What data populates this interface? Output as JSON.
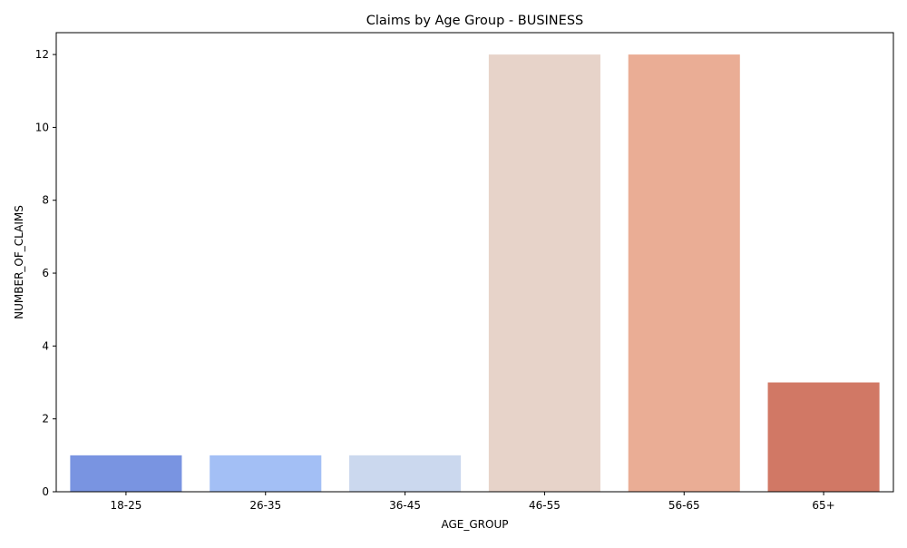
{
  "chart_data": {
    "type": "bar",
    "title": "Claims by Age Group - BUSINESS",
    "xlabel": "AGE_GROUP",
    "ylabel": "NUMBER_OF_CLAIMS",
    "categories": [
      "18-25",
      "26-35",
      "36-45",
      "46-55",
      "56-65",
      "65+"
    ],
    "values": [
      1,
      1,
      1,
      12,
      12,
      3
    ],
    "colors": [
      "#7994e1",
      "#a3bff5",
      "#cbd8ee",
      "#e7d3c9",
      "#eaad95",
      "#d17865"
    ],
    "ylim": [
      0,
      12.6
    ],
    "yticks": [
      0,
      2,
      4,
      6,
      8,
      10,
      12
    ],
    "grid": false,
    "legend": "none"
  }
}
